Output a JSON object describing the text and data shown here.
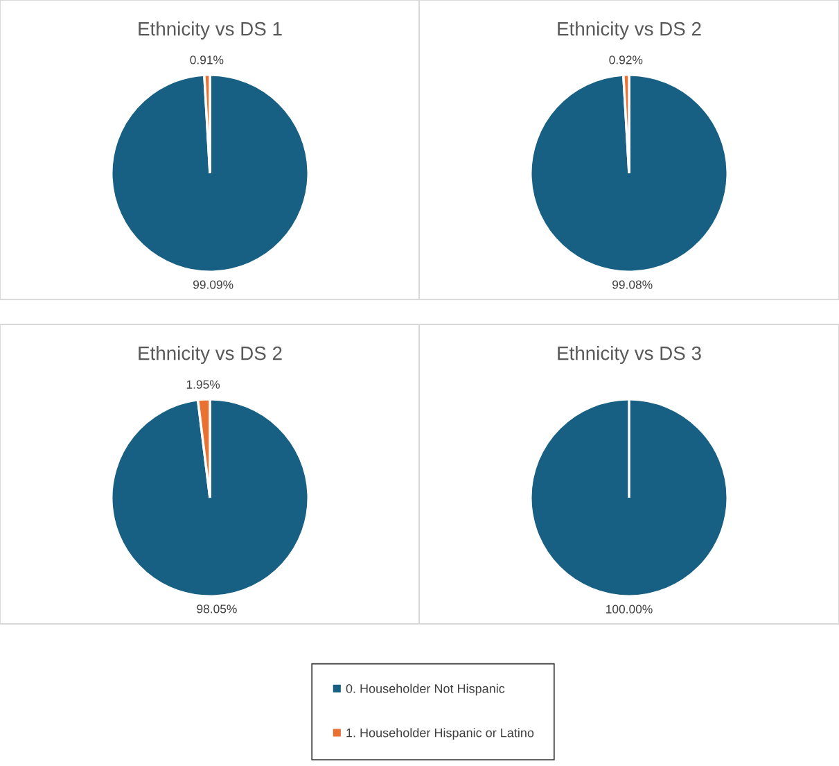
{
  "chart_data": [
    {
      "type": "pie",
      "title": "Ethnicity vs DS 1",
      "categories": [
        "0. Householder Not Hispanic",
        "1. Householder Hispanic or Latino"
      ],
      "values": [
        99.09,
        0.91
      ],
      "colors": [
        "#176083",
        "#e97132"
      ],
      "value_labels": [
        "99.09%",
        "0.91%"
      ],
      "legend": "bottom"
    },
    {
      "type": "pie",
      "title": "Ethnicity vs DS 2",
      "categories": [
        null,
        null
      ],
      "values": [
        99.08,
        0.92
      ],
      "colors": [
        "#176083",
        "#e97132"
      ],
      "value_labels": [
        "99.08%",
        "0.92%"
      ]
    },
    {
      "type": "pie",
      "title": "Ethnicity vs DS 2",
      "categories": [
        null,
        null
      ],
      "values": [
        98.05,
        1.95
      ],
      "colors": [
        "#176083",
        "#e97132"
      ],
      "value_labels": [
        "98.05%",
        "1.95%"
      ]
    },
    {
      "type": "pie",
      "title": "Ethnicity vs DS 3",
      "categories": [
        null,
        null
      ],
      "values": [
        100.0,
        0
      ],
      "colors": [
        "#176083",
        "#e97132"
      ],
      "value_labels": [
        "100.00%",
        null
      ]
    }
  ]
}
